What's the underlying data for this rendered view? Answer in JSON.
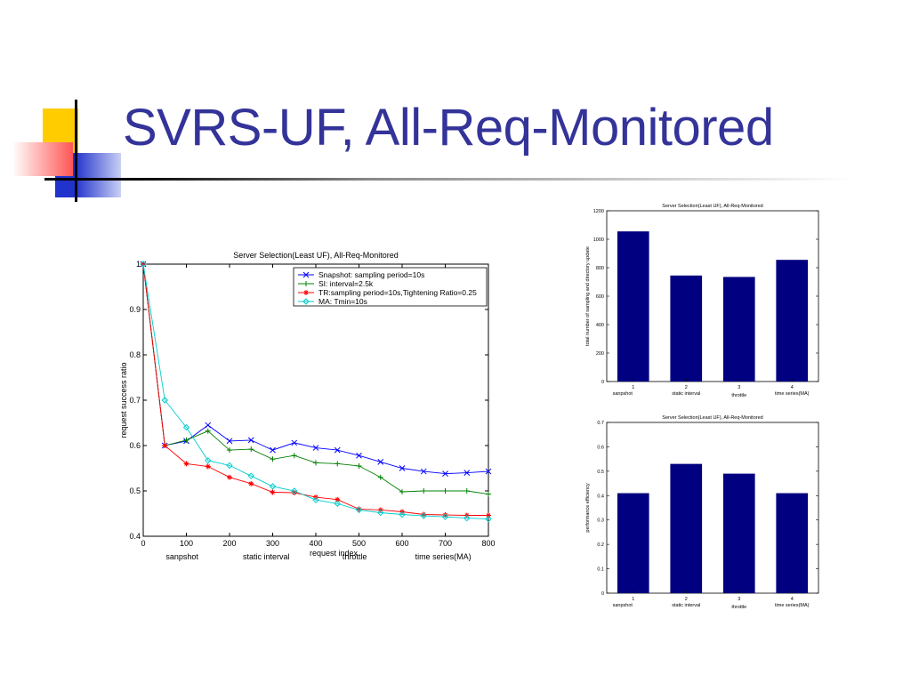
{
  "slide": {
    "title": "SVRS-UF, All-Req-Monitored"
  },
  "colors": {
    "title": "#333399",
    "bar": "#000080",
    "deco_yellow": "#ffcc00",
    "deco_red": "#ff5555",
    "deco_blue": "#2233cc"
  },
  "chart_data": [
    {
      "type": "line",
      "title": "Server Selection(Least UF), All-Req-Monitored",
      "xlabel": "request index",
      "ylabel": "request success ratio",
      "xlim": [
        0,
        800
      ],
      "ylim": [
        0.4,
        1.0
      ],
      "xticks": [
        0,
        100,
        200,
        300,
        400,
        500,
        600,
        700,
        800
      ],
      "yticks": [
        0.4,
        0.5,
        0.6,
        0.7,
        0.8,
        0.9,
        1
      ],
      "annotations": [
        {
          "text": "sanpshot",
          "x": 90
        },
        {
          "text": "static interval",
          "x": 285
        },
        {
          "text": "throttle",
          "x": 490
        },
        {
          "text": "time series(MA)",
          "x": 695
        }
      ],
      "legend_position": "top-right",
      "series": [
        {
          "name": "Snapshot: sampling period=10s",
          "color": "#0000ff",
          "marker": "x",
          "x": [
            0,
            50,
            100,
            150,
            200,
            250,
            300,
            350,
            400,
            450,
            500,
            550,
            600,
            650,
            700,
            750,
            800
          ],
          "y": [
            1.0,
            0.6,
            0.61,
            0.645,
            0.61,
            0.612,
            0.59,
            0.606,
            0.595,
            0.59,
            0.578,
            0.564,
            0.55,
            0.543,
            0.538,
            0.54,
            0.543
          ]
        },
        {
          "name": "SI: interval=2.5k",
          "color": "#008000",
          "marker": "+",
          "x": [
            0,
            50,
            100,
            150,
            200,
            250,
            300,
            350,
            400,
            450,
            500,
            550,
            600,
            650,
            700,
            750,
            800
          ],
          "y": [
            1.0,
            0.6,
            0.612,
            0.632,
            0.59,
            0.592,
            0.57,
            0.578,
            0.562,
            0.56,
            0.555,
            0.53,
            0.498,
            0.5,
            0.5,
            0.5,
            0.493
          ]
        },
        {
          "name": "TR:sampling period=10s,Tightening Ratio=0.25",
          "color": "#ff0000",
          "marker": "*",
          "x": [
            0,
            50,
            100,
            150,
            200,
            250,
            300,
            350,
            400,
            450,
            500,
            550,
            600,
            650,
            700,
            750,
            800
          ],
          "y": [
            1.0,
            0.6,
            0.56,
            0.554,
            0.53,
            0.516,
            0.497,
            0.496,
            0.486,
            0.481,
            0.46,
            0.458,
            0.454,
            0.448,
            0.447,
            0.446,
            0.446
          ]
        },
        {
          "name": "MA: Tmin=10s",
          "color": "#00cccc",
          "marker": "diamond",
          "x": [
            0,
            50,
            100,
            150,
            200,
            250,
            300,
            350,
            400,
            450,
            500,
            550,
            600,
            650,
            700,
            750,
            800
          ],
          "y": [
            1.0,
            0.7,
            0.64,
            0.567,
            0.556,
            0.533,
            0.51,
            0.5,
            0.48,
            0.472,
            0.458,
            0.452,
            0.448,
            0.445,
            0.443,
            0.44,
            0.438
          ]
        }
      ]
    },
    {
      "type": "bar",
      "title": "Server Selection(Least UF), All-Req-Monitored",
      "ylabel": "total number of sampling and directory update",
      "categories": [
        "1",
        "2",
        "3",
        "4"
      ],
      "category_labels": [
        "sanpshot",
        "static interval",
        "throttle",
        "time series(MA)"
      ],
      "values": [
        1055,
        745,
        735,
        855
      ],
      "ylim": [
        0,
        1200
      ],
      "yticks": [
        0,
        200,
        400,
        600,
        800,
        1000,
        1200
      ]
    },
    {
      "type": "bar",
      "title": "Server Selection(Least UF), All-Req-Monitored",
      "ylabel": "performance efficiency",
      "categories": [
        "1",
        "2",
        "3",
        "4"
      ],
      "category_labels": [
        "sanpshot",
        "static interval",
        "throttle",
        "time series(MA)"
      ],
      "values": [
        0.41,
        0.53,
        0.49,
        0.41
      ],
      "ylim": [
        0,
        0.7
      ],
      "yticks": [
        0,
        0.1,
        0.2,
        0.3,
        0.4,
        0.5,
        0.6,
        0.7
      ]
    }
  ]
}
